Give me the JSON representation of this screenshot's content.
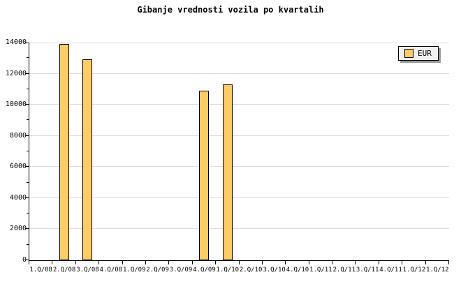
{
  "title": "Gibanje vrednosti vozila po kvartalih",
  "legend": {
    "label": "EUR"
  },
  "colors": {
    "background": "#FFFFFF",
    "bar_fill": "#FFCC66",
    "bar_border": "#000000",
    "gridline": "#DCDCDC",
    "axis": "#000000",
    "text": "#000000",
    "legend_bg": "#F0F0F0",
    "legend_border": "#000000",
    "legend_shadow": "#999999"
  },
  "chart_data": {
    "type": "bar",
    "title": "Gibanje vrednosti vozila po kvartalih",
    "categories": [
      "1.Q/08",
      "2.Q/08",
      "3.Q/08",
      "4.Q/08",
      "1.Q/09",
      "2.Q/09",
      "3.Q/09",
      "4.Q/09",
      "1.Q/10",
      "2.Q/10",
      "3.Q/10",
      "4.Q/10",
      "1.Q/11",
      "2.Q/11",
      "3.Q/11",
      "4.Q/11",
      "1.Q/12",
      "1.Q/12"
    ],
    "series": [
      {
        "name": "EUR",
        "values": [
          null,
          13800,
          12850,
          null,
          null,
          null,
          null,
          10800,
          11200,
          null,
          null,
          null,
          null,
          null,
          null,
          null,
          null,
          null
        ]
      }
    ],
    "ylim": [
      0,
      14000
    ],
    "yticks": [
      0,
      2000,
      4000,
      6000,
      8000,
      10000,
      12000,
      14000
    ],
    "minor_ytick_step": 1000,
    "grid": true,
    "legend_position": "top-right"
  }
}
